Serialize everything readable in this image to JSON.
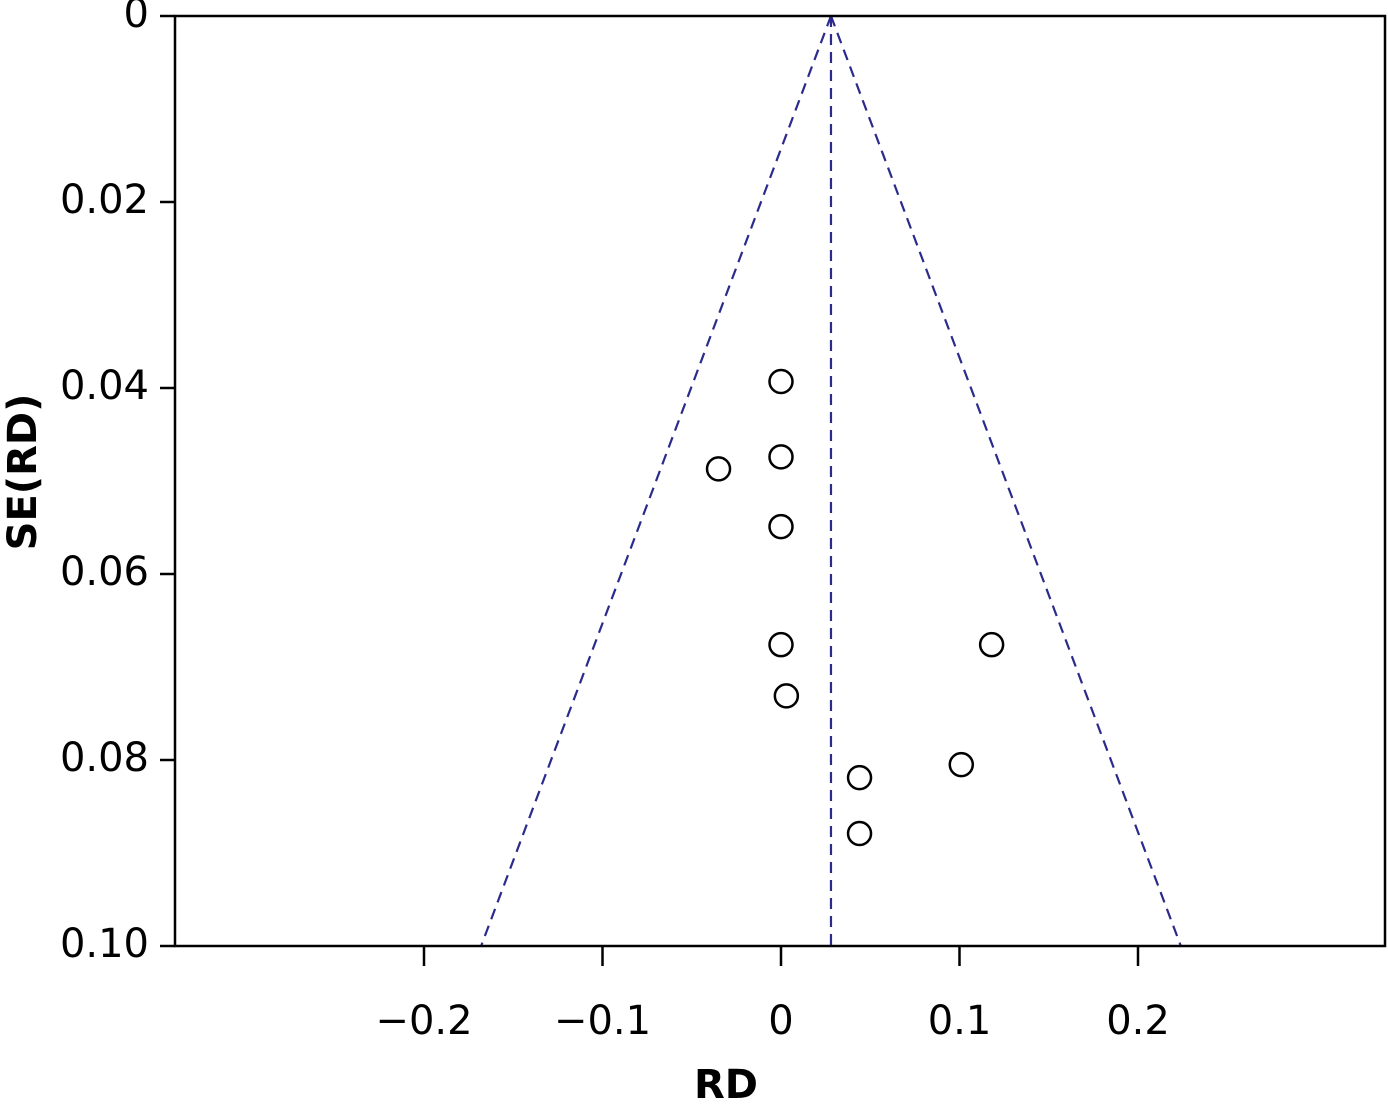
{
  "chart_data": {
    "type": "scatter",
    "title": "",
    "xlabel": "RD",
    "ylabel": "SE(RD)",
    "xlim": [
      -0.2,
      0.2
    ],
    "ylim": [
      0,
      0.1
    ],
    "y_reversed": true,
    "grid": false,
    "x_ticks": [
      {
        "value": -0.2,
        "label": "−0.2"
      },
      {
        "value": -0.1,
        "label": "−0.1"
      },
      {
        "value": 0,
        "label": "0"
      },
      {
        "value": 0.1,
        "label": "0.1"
      },
      {
        "value": 0.2,
        "label": "0.2"
      }
    ],
    "y_ticks": [
      {
        "value": 0,
        "label": "0"
      },
      {
        "value": 0.02,
        "label": "0.02"
      },
      {
        "value": 0.04,
        "label": "0.04"
      },
      {
        "value": 0.06,
        "label": "0.06"
      },
      {
        "value": 0.08,
        "label": "0.08"
      },
      {
        "value": 0.1,
        "label": "0.10"
      }
    ],
    "points": [
      {
        "x": 0.0,
        "y": 0.0393
      },
      {
        "x": 0.0,
        "y": 0.0474
      },
      {
        "x": -0.035,
        "y": 0.0487
      },
      {
        "x": 0.0,
        "y": 0.0549
      },
      {
        "x": 0.0,
        "y": 0.0676
      },
      {
        "x": 0.118,
        "y": 0.0676
      },
      {
        "x": 0.003,
        "y": 0.0731
      },
      {
        "x": 0.101,
        "y": 0.0805
      },
      {
        "x": 0.044,
        "y": 0.0819
      },
      {
        "x": 0.044,
        "y": 0.0879
      }
    ],
    "pooled_estimate": 0.028,
    "funnel_color": "#2b2b8c",
    "marker": "open-circle"
  }
}
